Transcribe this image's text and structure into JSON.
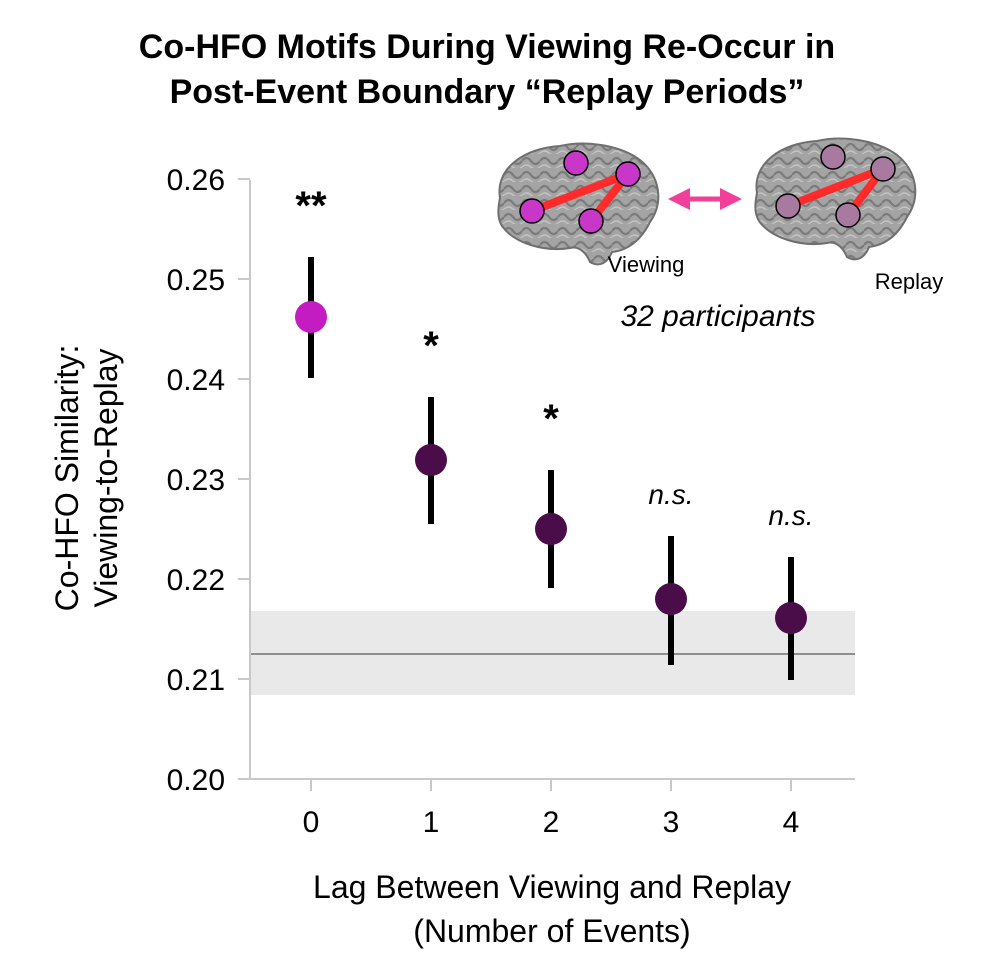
{
  "chart_data": {
    "type": "scatter",
    "title_lines": [
      "Co-HFO Motifs During Viewing Re-Occur in",
      "Post-Event Boundary “Replay Periods”"
    ],
    "ylabel_lines": [
      "Co-HFO Similarity:",
      "Viewing-to-Replay"
    ],
    "xlabel_lines": [
      "Lag Between Viewing and Replay",
      "(Number of Events)"
    ],
    "ylim": [
      0.2,
      0.26
    ],
    "yticks": [
      "0.26",
      "0.25",
      "0.24",
      "0.23",
      "0.22",
      "0.21",
      "0.20"
    ],
    "ytick_values": [
      0.26,
      0.25,
      0.24,
      0.23,
      0.22,
      0.21,
      0.2
    ],
    "categories": [
      "0",
      "1",
      "2",
      "3",
      "4"
    ],
    "values": [
      0.2462,
      0.2319,
      0.225,
      0.218,
      0.2161
    ],
    "error_lower": [
      0.2401,
      0.2255,
      0.2191,
      0.2114,
      0.2099
    ],
    "error_upper": [
      0.2522,
      0.2382,
      0.2309,
      0.2243,
      0.2222
    ],
    "significance": [
      "**",
      "*",
      "*",
      "n.s.",
      "n.s."
    ],
    "point_colors": [
      "#c21cc2",
      "#4a0d4a",
      "#4a0d4a",
      "#4a0d4a",
      "#4a0d4a"
    ],
    "baseline": {
      "value": 0.2125,
      "lower": 0.2084,
      "upper": 0.2168
    },
    "grid": false
  },
  "inset": {
    "viewing_label": "Viewing",
    "replay_label": "Replay",
    "participants_label": "32 participants",
    "viewing_node_color": "#c837c8",
    "replay_node_color": "#a87aa0",
    "arrow_color": "#f2409a",
    "edge_color": "#ff2a2a"
  }
}
